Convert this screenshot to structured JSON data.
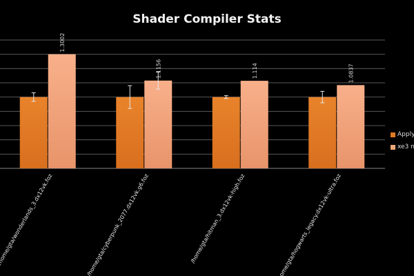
{
  "chart_data": {
    "type": "bar",
    "title": "Shader Compiler Stats",
    "categories": [
      "/home/gta/wonderlands_3.dx12vk.foz",
      "/home/gta/cyberpunk_2077.dx12vk.g6.foz",
      "/home/gta/hitman_3.dx12vk-high.foz",
      "/home/gta/hogwarts_legacy.dx12vk-ultra.foz"
    ],
    "series": [
      {
        "name": "Apply",
        "values": [
          1.0,
          1.0,
          1.0,
          1.0
        ],
        "errors": [
          0.03,
          0.08,
          0.01,
          0.04
        ],
        "color": "#e07a22"
      },
      {
        "name": "xe3 n",
        "values": [
          1.3002,
          1.1156,
          1.114,
          1.0837
        ],
        "errors": [
          0,
          0.06,
          0,
          0
        ],
        "color": "#f4a878"
      }
    ],
    "data_labels": [
      "1.3002",
      "1.1156",
      "1.114",
      "1.0837"
    ],
    "ylim": [
      0.5,
      1.4
    ],
    "grid": true,
    "legend": "right"
  }
}
